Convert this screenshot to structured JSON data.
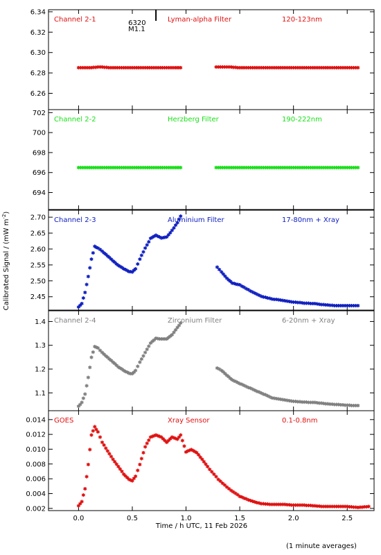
{
  "figure": {
    "xlabel_prefix": "Time / h UTC, 11 Feb 2026",
    "ylabel": "Calibrated Signal / (mW m",
    "ylabel_sup": "-2",
    "ylabel_end": ")",
    "footnote": "(1 minute averages)",
    "marker": {
      "line1": "6320",
      "line2": "M1.1",
      "x": 0.72
    }
  },
  "chart_data": [
    {
      "type": "scatter",
      "panel": "Channel 2-1",
      "title": "Lyman-alpha Filter",
      "band": "120-123nm",
      "color": "#e01010",
      "ylim": [
        6.244,
        6.342
      ],
      "yticks": [
        6.26,
        6.28,
        6.3,
        6.32,
        6.34
      ],
      "ytick_labels": [
        "6.26",
        "6.28",
        "6.30",
        "6.32",
        "6.34"
      ],
      "series": [
        {
          "x": [
            0.0,
            0.1,
            0.2,
            0.3,
            0.4,
            0.5,
            0.6,
            0.7,
            0.8,
            0.9,
            0.95,
            1.28,
            1.4,
            1.5,
            1.6,
            1.7,
            1.8,
            1.9,
            2.0,
            2.1,
            2.2,
            2.3,
            2.4,
            2.5,
            2.6
          ],
          "y": [
            6.284,
            6.284,
            6.285,
            6.284,
            6.284,
            6.284,
            6.284,
            6.284,
            6.284,
            6.284,
            6.284,
            6.285,
            6.285,
            6.284,
            6.284,
            6.284,
            6.284,
            6.284,
            6.284,
            6.284,
            6.284,
            6.284,
            6.284,
            6.284,
            6.284
          ]
        }
      ]
    },
    {
      "type": "scatter",
      "panel": "Channel 2-2",
      "title": "Herzberg Filter",
      "band": "190-222nm",
      "color": "#18e018",
      "ylim": [
        692.3,
        702.3
      ],
      "yticks": [
        694,
        696,
        698,
        700,
        702
      ],
      "ytick_labels": [
        "694",
        "696",
        "698",
        "700",
        "702"
      ],
      "series": [
        {
          "x": [
            0.0,
            0.1,
            0.2,
            0.3,
            0.4,
            0.5,
            0.6,
            0.7,
            0.8,
            0.9,
            0.95,
            1.28,
            1.4,
            1.5,
            1.6,
            1.7,
            1.8,
            1.9,
            2.0,
            2.1,
            2.2,
            2.3,
            2.4,
            2.5,
            2.6
          ],
          "y": [
            696.4,
            696.4,
            696.4,
            696.4,
            696.4,
            696.4,
            696.4,
            696.4,
            696.4,
            696.4,
            696.4,
            696.4,
            696.4,
            696.4,
            696.4,
            696.4,
            696.4,
            696.4,
            696.4,
            696.4,
            696.4,
            696.4,
            696.4,
            696.4,
            696.4
          ]
        }
      ]
    },
    {
      "type": "scatter",
      "panel": "Channel 2-3",
      "title": "Aluminium Filter",
      "band": "17-80nm + Xray",
      "color": "#1020c0",
      "ylim": [
        2.408,
        2.722
      ],
      "yticks": [
        2.45,
        2.5,
        2.55,
        2.6,
        2.65,
        2.7
      ],
      "ytick_labels": [
        "2.45",
        "2.50",
        "2.55",
        "2.60",
        "2.65",
        "2.70"
      ],
      "series": [
        {
          "x": [
            0.0,
            0.03,
            0.06,
            0.09,
            0.12,
            0.15,
            0.18,
            0.22,
            0.27,
            0.32,
            0.37,
            0.42,
            0.47,
            0.5,
            0.53,
            0.57,
            0.62,
            0.67,
            0.72,
            0.77,
            0.82,
            0.87,
            0.92,
            0.95,
            1.29,
            1.33,
            1.38,
            1.43,
            1.5,
            1.6,
            1.7,
            1.8,
            1.9,
            2.0,
            2.1,
            2.2,
            2.3,
            2.4,
            2.5,
            2.6
          ],
          "y": [
            2.415,
            2.425,
            2.46,
            2.51,
            2.565,
            2.605,
            2.6,
            2.59,
            2.575,
            2.56,
            2.545,
            2.535,
            2.526,
            2.525,
            2.535,
            2.565,
            2.6,
            2.63,
            2.64,
            2.632,
            2.635,
            2.655,
            2.68,
            2.7,
            2.54,
            2.525,
            2.505,
            2.49,
            2.484,
            2.465,
            2.448,
            2.44,
            2.435,
            2.43,
            2.427,
            2.425,
            2.421,
            2.419,
            2.419,
            2.419
          ]
        }
      ]
    },
    {
      "type": "scatter",
      "panel": "Channel 2-4",
      "title": "Zirconium Filter",
      "band": "6-20nm + Xray",
      "color": "#808080",
      "ylim": [
        1.025,
        1.445
      ],
      "yticks": [
        1.1,
        1.2,
        1.3,
        1.4
      ],
      "ytick_labels": [
        "1.1",
        "1.2",
        "1.3",
        "1.4"
      ],
      "series": [
        {
          "x": [
            0.0,
            0.03,
            0.06,
            0.09,
            0.12,
            0.15,
            0.18,
            0.22,
            0.27,
            0.32,
            0.37,
            0.42,
            0.47,
            0.5,
            0.53,
            0.57,
            0.62,
            0.67,
            0.72,
            0.77,
            0.82,
            0.87,
            0.92,
            0.95,
            1.29,
            1.33,
            1.38,
            1.43,
            1.5,
            1.6,
            1.7,
            1.8,
            1.9,
            2.0,
            2.1,
            2.2,
            2.3,
            2.4,
            2.5,
            2.6
          ],
          "y": [
            1.04,
            1.055,
            1.09,
            1.16,
            1.245,
            1.29,
            1.285,
            1.265,
            1.245,
            1.225,
            1.205,
            1.19,
            1.178,
            1.176,
            1.19,
            1.225,
            1.265,
            1.305,
            1.325,
            1.322,
            1.323,
            1.34,
            1.37,
            1.39,
            1.2,
            1.19,
            1.17,
            1.15,
            1.135,
            1.115,
            1.095,
            1.075,
            1.068,
            1.06,
            1.057,
            1.055,
            1.05,
            1.047,
            1.044,
            1.042
          ]
        }
      ]
    },
    {
      "type": "scatter",
      "panel": "GOES",
      "title": "Xray Sensor",
      "band": "0.1-0.8nm",
      "color": "#e01010",
      "ylim": [
        0.0017,
        0.0152
      ],
      "yticks": [
        0.002,
        0.004,
        0.006,
        0.008,
        0.01,
        0.012,
        0.014
      ],
      "ytick_labels": [
        "0.002",
        "0.004",
        "0.006",
        "0.008",
        "0.010",
        "0.012",
        "0.014"
      ],
      "series": [
        {
          "x": [
            0.0,
            0.03,
            0.06,
            0.09,
            0.12,
            0.15,
            0.18,
            0.22,
            0.27,
            0.32,
            0.37,
            0.42,
            0.47,
            0.5,
            0.53,
            0.57,
            0.62,
            0.67,
            0.72,
            0.77,
            0.82,
            0.87,
            0.92,
            0.95,
            1.0,
            1.05,
            1.1,
            1.15,
            1.2,
            1.3,
            1.4,
            1.5,
            1.6,
            1.7,
            1.8,
            1.9,
            2.0,
            2.1,
            2.2,
            2.3,
            2.4,
            2.5,
            2.6,
            2.7
          ],
          "y": [
            0.0022,
            0.0028,
            0.0045,
            0.0078,
            0.0118,
            0.0129,
            0.0122,
            0.0108,
            0.0096,
            0.0085,
            0.0075,
            0.0065,
            0.0058,
            0.0056,
            0.0062,
            0.0078,
            0.0102,
            0.0115,
            0.0118,
            0.0115,
            0.0108,
            0.0115,
            0.0112,
            0.0118,
            0.0095,
            0.0098,
            0.0094,
            0.0085,
            0.0075,
            0.0058,
            0.0045,
            0.0035,
            0.0029,
            0.0025,
            0.0024,
            0.0024,
            0.0023,
            0.0023,
            0.0022,
            0.0021,
            0.0021,
            0.0021,
            0.002,
            0.0021
          ]
        }
      ]
    }
  ],
  "xaxis": {
    "xlim": [
      -0.28,
      2.75
    ],
    "ticks": [
      0.0,
      0.5,
      1.0,
      1.5,
      2.0,
      2.5
    ],
    "tick_labels": [
      "0.0",
      "0.5",
      "1.0",
      "1.5",
      "2.0",
      "2.5"
    ]
  }
}
